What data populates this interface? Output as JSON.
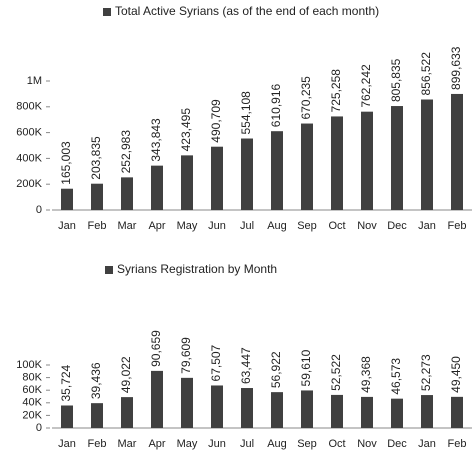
{
  "chart_data": [
    {
      "type": "bar",
      "categories": [
        "Jan",
        "Feb",
        "Mar",
        "Apr",
        "May",
        "Jun",
        "Jul",
        "Aug",
        "Sep",
        "Oct",
        "Nov",
        "Dec",
        "Jan",
        "Feb"
      ],
      "series": [
        {
          "name": "Total Active Syrians   (as of the end of each month)",
          "color": "#404040",
          "values": [
            165003,
            203835,
            252983,
            343843,
            423495,
            490709,
            554108,
            610916,
            670235,
            725258,
            762242,
            805835,
            856522,
            899633
          ],
          "value_labels": [
            "165,003",
            "203,835",
            "252,983",
            "343,843",
            "423,495",
            "490,709",
            "554,108",
            "610,916",
            "670,235",
            "725,258",
            "762,242",
            "805,835",
            "856,522",
            "899,633"
          ]
        }
      ],
      "ylim": [
        0,
        1000000
      ],
      "yticks": [
        0,
        {
          "value": 200000,
          "label": "200K"
        },
        {
          "value": 400000,
          "label": "400K"
        },
        {
          "value": 600000,
          "label": "600K"
        },
        {
          "value": 800000,
          "label": "800K"
        },
        {
          "value": 1000000,
          "label": "1M"
        }
      ],
      "legend": "top"
    },
    {
      "type": "bar",
      "categories": [
        "Jan",
        "Feb",
        "Mar",
        "Apr",
        "May",
        "Jun",
        "Jul",
        "Aug",
        "Sep",
        "Oct",
        "Nov",
        "Dec",
        "Jan",
        "Feb"
      ],
      "series": [
        {
          "name": "Syrians Registration by Month",
          "color": "#404040",
          "values": [
            35724,
            39436,
            49022,
            90659,
            79609,
            67507,
            63447,
            56922,
            59610,
            52522,
            49368,
            46573,
            52273,
            49450
          ],
          "value_labels": [
            "35,724",
            "39,436",
            "49,022",
            "90,659",
            "79,609",
            "67,507",
            "63,447",
            "56,922",
            "59,610",
            "52,522",
            "49,368",
            "46,573",
            "52,273",
            "49,450"
          ]
        }
      ],
      "ylim": [
        0,
        100000
      ],
      "yticks": [
        0,
        {
          "value": 20000,
          "label": "20K"
        },
        {
          "value": 40000,
          "label": "40K"
        },
        {
          "value": 60000,
          "label": "60K"
        },
        {
          "value": 80000,
          "label": "80K"
        },
        {
          "value": 100000,
          "label": "100K"
        }
      ],
      "legend": "top"
    }
  ]
}
